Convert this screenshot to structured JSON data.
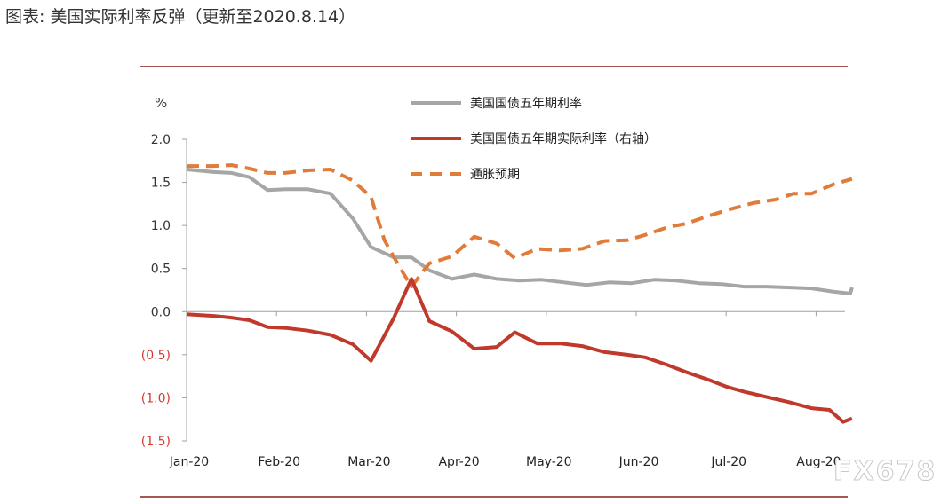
{
  "page": {
    "title": "图表: 美国实际利率反弹（更新至2020.8.14）",
    "watermark": "FX678"
  },
  "chart_data": {
    "type": "line",
    "unit_label": "%",
    "y_range": [
      -1.5,
      2.0
    ],
    "y_ticks": [
      {
        "value": 2.0,
        "label": "2.0",
        "color": "#333333"
      },
      {
        "value": 1.5,
        "label": "1.5",
        "color": "#333333"
      },
      {
        "value": 1.0,
        "label": "1.0",
        "color": "#333333"
      },
      {
        "value": 0.5,
        "label": "0.5",
        "color": "#333333"
      },
      {
        "value": 0.0,
        "label": "0.0",
        "color": "#333333"
      },
      {
        "value": -0.5,
        "label": "(0.5)",
        "color": "#d63a2f"
      },
      {
        "value": -1.0,
        "label": "(1.0)",
        "color": "#d63a2f"
      },
      {
        "value": -1.5,
        "label": "(1.5)",
        "color": "#d63a2f"
      }
    ],
    "x_ticks": [
      "Jan-20",
      "Feb-20",
      "Mar-20",
      "Apr-20",
      "May-20",
      "Jun-20",
      "Jul-20",
      "Aug-20"
    ],
    "x_domain": [
      0,
      7.4
    ],
    "grid": false,
    "legend_position": "top-center",
    "series": [
      {
        "name": "美国国债五年期利率",
        "color": "#a6a6a6",
        "style": "solid",
        "points": [
          [
            0.0,
            1.65
          ],
          [
            0.3,
            1.62
          ],
          [
            0.5,
            1.61
          ],
          [
            0.7,
            1.56
          ],
          [
            0.9,
            1.41
          ],
          [
            1.1,
            1.42
          ],
          [
            1.35,
            1.42
          ],
          [
            1.6,
            1.37
          ],
          [
            1.85,
            1.08
          ],
          [
            2.05,
            0.75
          ],
          [
            2.3,
            0.63
          ],
          [
            2.5,
            0.63
          ],
          [
            2.7,
            0.48
          ],
          [
            2.95,
            0.38
          ],
          [
            3.2,
            0.43
          ],
          [
            3.45,
            0.38
          ],
          [
            3.7,
            0.36
          ],
          [
            3.95,
            0.37
          ],
          [
            4.2,
            0.34
          ],
          [
            4.45,
            0.31
          ],
          [
            4.7,
            0.34
          ],
          [
            4.95,
            0.33
          ],
          [
            5.2,
            0.37
          ],
          [
            5.45,
            0.36
          ],
          [
            5.7,
            0.33
          ],
          [
            5.95,
            0.32
          ],
          [
            6.2,
            0.29
          ],
          [
            6.45,
            0.29
          ],
          [
            6.7,
            0.28
          ],
          [
            6.95,
            0.27
          ],
          [
            7.2,
            0.23
          ],
          [
            7.38,
            0.21
          ],
          [
            7.4,
            0.28
          ]
        ]
      },
      {
        "name": "美国国债五年期实际利率（右轴）",
        "color": "#c0392b",
        "style": "solid",
        "points": [
          [
            0.0,
            -0.03
          ],
          [
            0.3,
            -0.05
          ],
          [
            0.5,
            -0.07
          ],
          [
            0.7,
            -0.1
          ],
          [
            0.9,
            -0.18
          ],
          [
            1.1,
            -0.19
          ],
          [
            1.35,
            -0.22
          ],
          [
            1.6,
            -0.27
          ],
          [
            1.85,
            -0.38
          ],
          [
            2.05,
            -0.57
          ],
          [
            2.3,
            -0.08
          ],
          [
            2.5,
            0.38
          ],
          [
            2.7,
            -0.11
          ],
          [
            2.95,
            -0.23
          ],
          [
            3.2,
            -0.43
          ],
          [
            3.45,
            -0.41
          ],
          [
            3.65,
            -0.24
          ],
          [
            3.9,
            -0.37
          ],
          [
            4.15,
            -0.37
          ],
          [
            4.4,
            -0.4
          ],
          [
            4.65,
            -0.47
          ],
          [
            4.9,
            -0.5
          ],
          [
            5.1,
            -0.53
          ],
          [
            5.35,
            -0.62
          ],
          [
            5.55,
            -0.7
          ],
          [
            5.8,
            -0.79
          ],
          [
            6.0,
            -0.87
          ],
          [
            6.2,
            -0.93
          ],
          [
            6.45,
            -0.99
          ],
          [
            6.7,
            -1.05
          ],
          [
            6.95,
            -1.12
          ],
          [
            7.15,
            -1.14
          ],
          [
            7.3,
            -1.28
          ],
          [
            7.4,
            -1.24
          ]
        ]
      },
      {
        "name": "通胀预期",
        "color": "#e07b39",
        "style": "dashed",
        "points": [
          [
            0.0,
            1.69
          ],
          [
            0.3,
            1.69
          ],
          [
            0.5,
            1.7
          ],
          [
            0.7,
            1.66
          ],
          [
            0.9,
            1.61
          ],
          [
            1.1,
            1.61
          ],
          [
            1.35,
            1.64
          ],
          [
            1.6,
            1.65
          ],
          [
            1.85,
            1.52
          ],
          [
            2.05,
            1.33
          ],
          [
            2.2,
            0.83
          ],
          [
            2.35,
            0.55
          ],
          [
            2.5,
            0.29
          ],
          [
            2.7,
            0.56
          ],
          [
            2.95,
            0.64
          ],
          [
            3.2,
            0.87
          ],
          [
            3.45,
            0.79
          ],
          [
            3.65,
            0.62
          ],
          [
            3.9,
            0.73
          ],
          [
            4.15,
            0.71
          ],
          [
            4.4,
            0.73
          ],
          [
            4.65,
            0.82
          ],
          [
            4.9,
            0.83
          ],
          [
            5.1,
            0.89
          ],
          [
            5.35,
            0.98
          ],
          [
            5.55,
            1.02
          ],
          [
            5.8,
            1.11
          ],
          [
            6.05,
            1.19
          ],
          [
            6.3,
            1.26
          ],
          [
            6.55,
            1.3
          ],
          [
            6.75,
            1.37
          ],
          [
            6.95,
            1.37
          ],
          [
            7.2,
            1.48
          ],
          [
            7.4,
            1.54
          ]
        ]
      }
    ]
  }
}
